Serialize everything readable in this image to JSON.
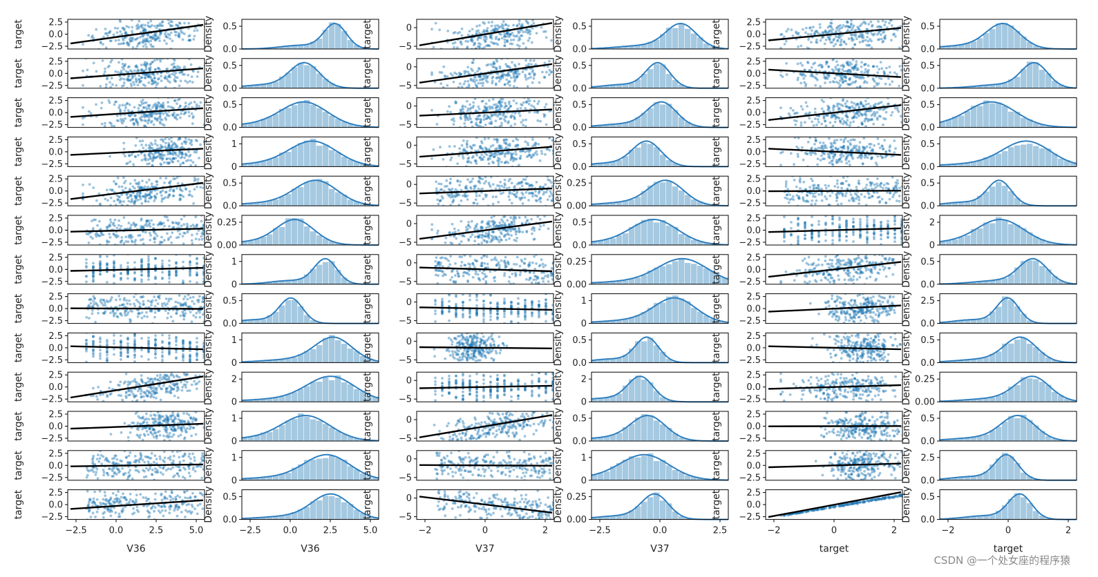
{
  "figure": {
    "rows": 13,
    "cols": 6,
    "bottom_xlabels": [
      "V36",
      "V36",
      "V37",
      "V37",
      "target",
      "target"
    ],
    "scatter_ylabel": "target",
    "density_ylabel": "Density",
    "colors": {
      "points": "#1f77b4",
      "fit_line": "#000000",
      "hist": "#1f77b4",
      "kde": "#2f7fbf"
    }
  },
  "watermark": "CSDN @一个处女座的程序猿",
  "chart_data": [
    {
      "type": "scatter",
      "column": "V36 vs target",
      "xlabel": "V36",
      "ylabel": "target",
      "xticks": [
        "−2.5",
        "0.0",
        "2.5",
        "5.0"
      ],
      "xlim": [
        -3,
        5.2
      ],
      "slopes": [
        0.75,
        0.4,
        0.35,
        0.25,
        0.65,
        0.12,
        0.12,
        -0.02,
        -0.12,
        0.85,
        0.2,
        0.08,
        0.35
      ],
      "x_shapes": [
        "norm",
        "norm",
        "norm",
        "clumpR",
        "norm",
        "wide",
        "disc",
        "wide",
        "disc",
        "norm",
        "clumpR",
        "wide",
        "wide"
      ],
      "yticks": [
        "2.5",
        "0.0",
        "−2.5"
      ]
    },
    {
      "type": "area",
      "column": "V36 distribution",
      "xlabel": "V36",
      "ylabel": "Density",
      "xticks": [
        "−2.5",
        "0.0",
        "2.5",
        "5.0"
      ],
      "yticks": [
        [
          "0.5",
          "0.0"
        ],
        [
          "0.5",
          "0.0"
        ],
        [
          "0.5",
          "0.0"
        ],
        [
          "1",
          "0"
        ],
        [
          "0.5",
          "0.0"
        ],
        [
          "0.25",
          "0.00"
        ],
        [
          "1",
          "0"
        ],
        [
          "0.5",
          "0.0"
        ],
        [
          "1",
          "0"
        ],
        [
          "2",
          "0"
        ],
        [
          "1",
          "0"
        ],
        [
          "1",
          "0"
        ],
        [
          "0.5",
          "0.0"
        ]
      ]
    },
    {
      "type": "scatter",
      "column": "V37 vs target",
      "xlabel": "V37",
      "ylabel": "target",
      "xticks": [
        "−2",
        "0",
        "2"
      ],
      "xlim": [
        -3.8,
        3
      ],
      "slopes": [
        0.9,
        0.75,
        0.25,
        0.4,
        0.2,
        0.7,
        -0.15,
        -0.1,
        -0.05,
        0.1,
        0.9,
        -0.03,
        -0.65
      ],
      "x_shapes": [
        "norm",
        "norm",
        "norm",
        "norm",
        "wide",
        "norm",
        "wide",
        "disc",
        "narrow",
        "disc",
        "norm",
        "wide",
        "wide"
      ],
      "yticks": [
        "0",
        "−5"
      ]
    },
    {
      "type": "area",
      "column": "V37 distribution",
      "xlabel": "V37",
      "ylabel": "Density",
      "xticks": [
        "−2.5",
        "0.0",
        "2.5"
      ],
      "yticks": [
        [
          "0.5",
          "0.0"
        ],
        [
          "0.5",
          "0.0"
        ],
        [
          "0.5",
          "0.0"
        ],
        [
          "0.5",
          "0.0"
        ],
        [
          "0.25",
          "0.00"
        ],
        [
          "0.5",
          "0.0"
        ],
        [
          "0.25",
          "0.00"
        ],
        [
          "1",
          "0"
        ],
        [
          "0.5",
          "0.0"
        ],
        [
          "2",
          "0"
        ],
        [
          "0.5",
          "0.0"
        ],
        [
          "1",
          "0"
        ],
        [
          "0.25",
          "0.00"
        ]
      ]
    },
    {
      "type": "scatter",
      "column": "target vs target",
      "xlabel": "target",
      "ylabel": "target",
      "xticks": [
        "−2",
        "0",
        "2"
      ],
      "xlim": [
        -3.3,
        2.6
      ],
      "slopes": [
        0.5,
        -0.3,
        0.6,
        -0.25,
        0.02,
        0.15,
        0.6,
        0.25,
        -0.12,
        0.15,
        0.01,
        0.15,
        1.0
      ],
      "x_shapes": [
        "norm",
        "norm",
        "norm",
        "norm",
        "wide",
        "disc",
        "norm",
        "clumpR",
        "clumpR",
        "norm",
        "clumpR",
        "clumpR",
        "line"
      ],
      "yticks": [
        "2.5",
        "0.0",
        "−2.5"
      ]
    },
    {
      "type": "area",
      "column": "target distribution",
      "xlabel": "target",
      "ylabel": "Density",
      "xticks": [
        "−2",
        "0",
        "2"
      ],
      "yticks": [
        [
          "0.5",
          "0.0"
        ],
        [
          "0.5",
          "0.0"
        ],
        [
          "0.5",
          "0.0"
        ],
        [
          "0.5",
          "0.0"
        ],
        [
          "0.5",
          "0.0"
        ],
        [
          "2",
          "0"
        ],
        [
          "0.5",
          "0.0"
        ],
        [
          "2.5",
          "0.0"
        ],
        [
          "0.5",
          "0.0"
        ],
        [
          "0.25",
          "0.00"
        ],
        [
          "0.5",
          "0.0"
        ],
        [
          "2.5",
          "0.0"
        ],
        [
          "0.5",
          "0.0"
        ]
      ]
    }
  ]
}
